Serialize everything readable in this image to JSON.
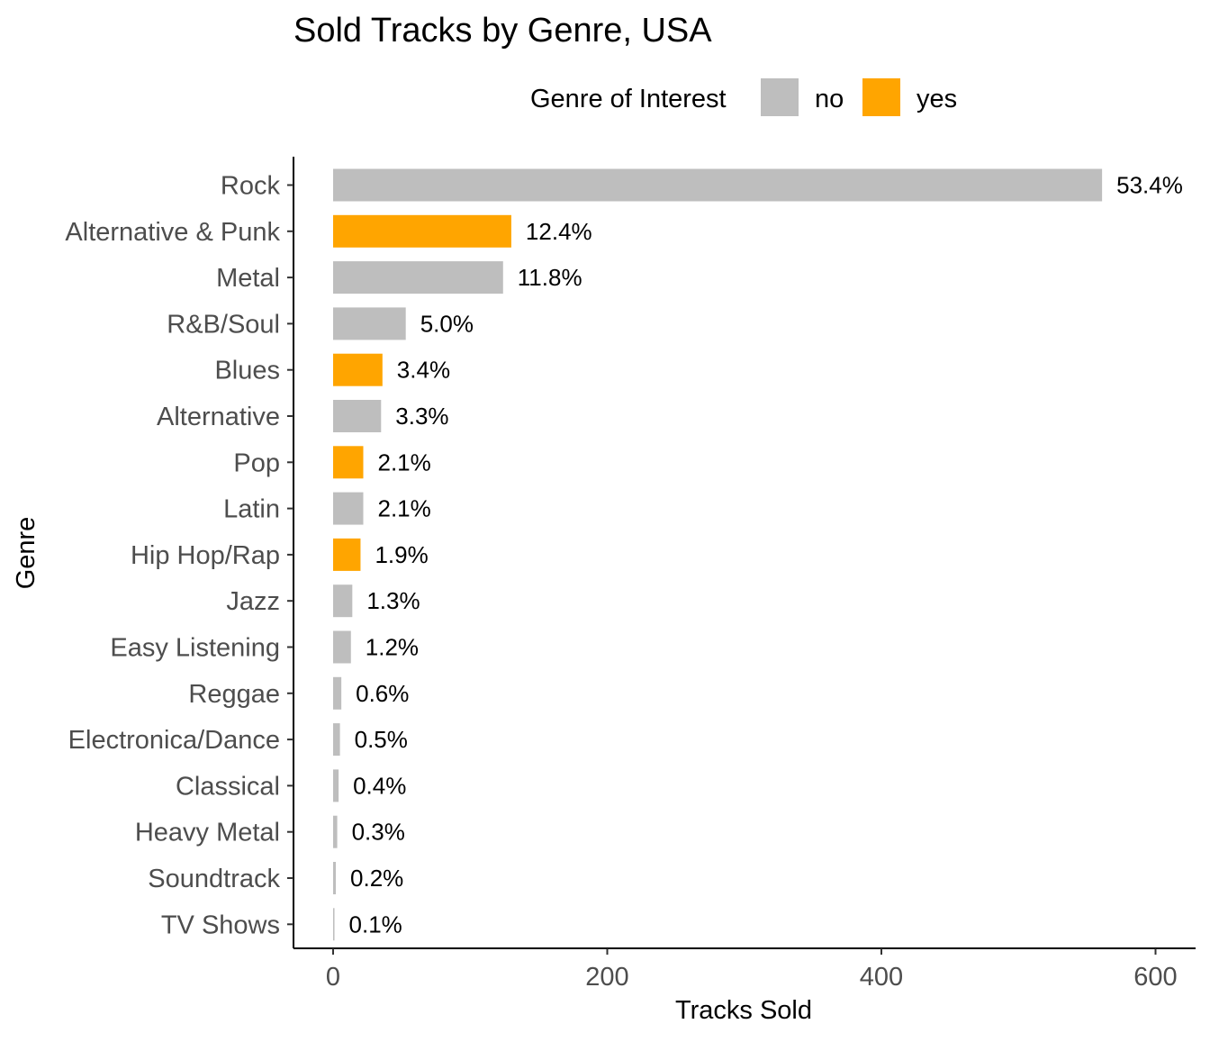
{
  "chart_data": {
    "type": "bar",
    "orientation": "horizontal",
    "title": "Sold Tracks by Genre, USA",
    "xlabel": "Tracks Sold",
    "ylabel": "Genre",
    "xlim": [
      0,
      620
    ],
    "x_ticks": [
      0,
      200,
      400,
      600
    ],
    "grid": false,
    "legend": {
      "title": "Genre of Interest",
      "position": "top",
      "entries": [
        {
          "label": "no",
          "color": "#bebebe"
        },
        {
          "label": "yes",
          "color": "#ffa500"
        }
      ]
    },
    "categories": [
      "Rock",
      "Alternative & Punk",
      "Metal",
      "R&B/Soul",
      "Blues",
      "Alternative",
      "Pop",
      "Latin",
      "Hip Hop/Rap",
      "Jazz",
      "Easy Listening",
      "Reggae",
      "Electronica/Dance",
      "Classical",
      "Heavy Metal",
      "Soundtrack",
      "TV Shows"
    ],
    "values": [
      561,
      130,
      124,
      53,
      36,
      35,
      22,
      22,
      20,
      14,
      13,
      6,
      5,
      4,
      3,
      2,
      1
    ],
    "percent_labels": [
      "53.4%",
      "12.4%",
      "11.8%",
      "5.0%",
      "3.4%",
      "3.3%",
      "2.1%",
      "2.1%",
      "1.9%",
      "1.3%",
      "1.2%",
      "0.6%",
      "0.5%",
      "0.4%",
      "0.3%",
      "0.2%",
      "0.1%"
    ],
    "genre_of_interest": [
      "no",
      "yes",
      "no",
      "no",
      "yes",
      "no",
      "yes",
      "no",
      "yes",
      "no",
      "no",
      "no",
      "no",
      "no",
      "no",
      "no",
      "no"
    ]
  }
}
